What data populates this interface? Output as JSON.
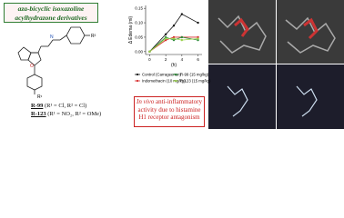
{
  "title_box": "aza-bicyclic isoxazoline acylhydrazone derivatives",
  "structure": {
    "labels": [
      "R²",
      "R¹"
    ]
  },
  "compounds": [
    {
      "name": "R-99",
      "substituents": "(R¹ = Cl, R² = Cl)"
    },
    {
      "name": "R-123",
      "substituents": "(R¹ = NO₂, R² = OMe)"
    }
  ],
  "conclusion": {
    "italic": "In vivo",
    "text": "anti-inflammatory activity due to histamine H1 receptor antagonism"
  },
  "chart_data": {
    "type": "line",
    "y_label": "Δ Edema (ml)",
    "x_label": "(h)",
    "x": [
      0,
      2,
      3,
      4,
      6
    ],
    "xlim": [
      -0.5,
      6.5
    ],
    "xticks": [
      0,
      2,
      4,
      6
    ],
    "ylim": [
      -0.01,
      0.16
    ],
    "yticks": [
      {
        "value": 0,
        "label": "0.00"
      },
      {
        "value": 0.05,
        "label": "0.05"
      },
      {
        "value": 0.1,
        "label": "0.10"
      },
      {
        "value": 0.15,
        "label": "0.15"
      }
    ],
    "series": [
      {
        "name": "Control (Carrageenan)",
        "color": "#111111",
        "values": [
          0.0,
          0.06,
          0.09,
          0.13,
          0.1
        ]
      },
      {
        "name": "Indomethacin (10 mg/kg)",
        "color": "#d62a2a",
        "values": [
          0.0,
          0.04,
          0.05,
          0.05,
          0.05
        ]
      },
      {
        "name": "R-99 (15 mg/kg)",
        "color": "#2e8b3a",
        "values": [
          0.0,
          0.05,
          0.04,
          0.05,
          0.04
        ]
      },
      {
        "name": "R-123 (15 mg/kg)",
        "color": "#9ad14b",
        "values": [
          0.0,
          0.045,
          0.045,
          0.04,
          0.045
        ]
      }
    ]
  }
}
